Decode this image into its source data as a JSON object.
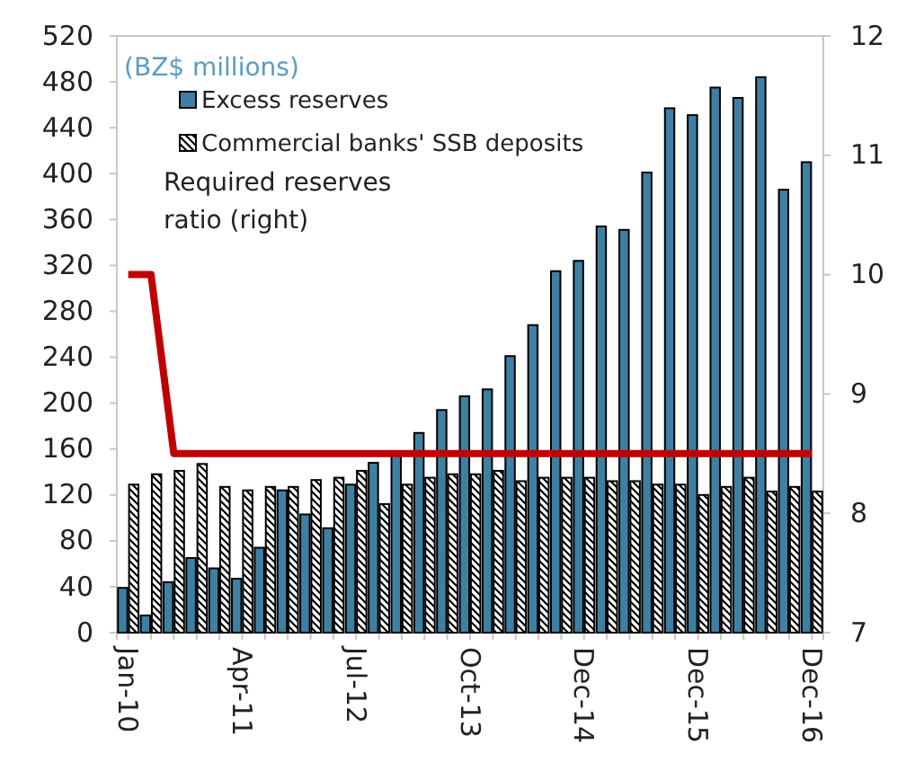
{
  "chart_data": {
    "type": "bar",
    "categories": [
      "Jan-10",
      null,
      null,
      null,
      null,
      "Apr-11",
      null,
      null,
      null,
      null,
      "Jul-12",
      null,
      null,
      null,
      null,
      "Oct-13",
      null,
      null,
      null,
      null,
      "Dec-14",
      null,
      null,
      null,
      null,
      "Dec-15",
      null,
      null,
      null,
      null,
      "Dec-16"
    ],
    "series": [
      {
        "name": "Excess reserves",
        "color": "#3e80a3",
        "values": [
          39,
          15,
          44,
          65,
          56,
          47,
          74,
          124,
          103,
          91,
          129,
          148,
          157,
          174,
          194,
          206,
          212,
          241,
          268,
          315,
          324,
          354,
          351,
          401,
          457,
          451,
          475,
          466,
          484,
          386,
          410
        ]
      },
      {
        "name": "Commercial banks' SSB deposits",
        "color": "#000000",
        "values": [
          129,
          138,
          141,
          147,
          127,
          124,
          127,
          127,
          133,
          135,
          141,
          112,
          129,
          135,
          138,
          138,
          141,
          132,
          135,
          135,
          135,
          132,
          132,
          129,
          129,
          120,
          127,
          135,
          123,
          127,
          123
        ]
      },
      {
        "name": "Required  reserves ratio (right)",
        "type": "line",
        "axis": "y2",
        "color": "#c00000",
        "values": [
          10,
          10,
          8.5,
          8.5,
          8.5,
          8.5,
          8.5,
          8.5,
          8.5,
          8.5,
          8.5,
          8.5,
          8.5,
          8.5,
          8.5,
          8.5,
          8.5,
          8.5,
          8.5,
          8.5,
          8.5,
          8.5,
          8.5,
          8.5,
          8.5,
          8.5,
          8.5,
          8.5,
          8.5,
          8.5,
          8.5
        ]
      }
    ],
    "ylim": [
      0,
      520
    ],
    "yticks": [
      0,
      40,
      80,
      120,
      160,
      200,
      240,
      280,
      320,
      360,
      400,
      440,
      480,
      520
    ],
    "y2lim": [
      7,
      12
    ],
    "y2ticks": [
      7,
      8,
      9,
      10,
      11,
      12
    ],
    "annotations": [
      "(BZ$ millions)"
    ],
    "legend": "top left",
    "grid": false
  }
}
